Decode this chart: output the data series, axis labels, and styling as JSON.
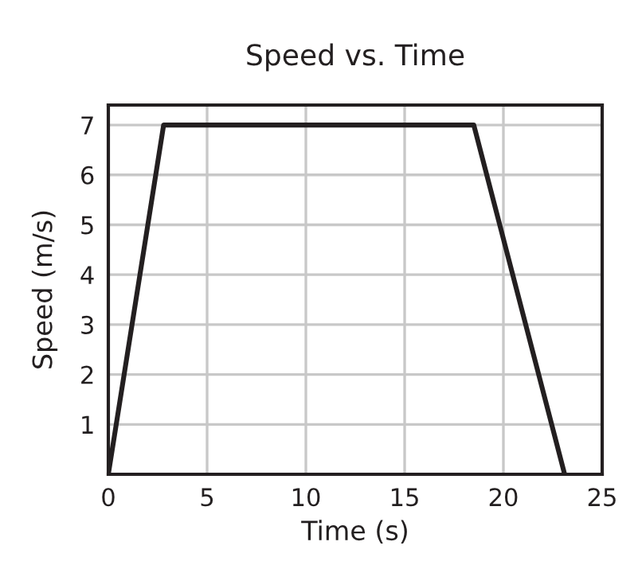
{
  "chart_data": {
    "type": "line",
    "title": "Speed vs. Time",
    "xlabel": "Time (s)",
    "ylabel": "Speed (m/s)",
    "x": [
      0,
      2.8,
      18.5,
      23.1
    ],
    "series": [
      {
        "color": "#231f20",
        "values": [
          0,
          7,
          7,
          0
        ]
      }
    ],
    "xlim": [
      0,
      25
    ],
    "ylim": [
      0,
      7.4
    ],
    "xticks": [
      0,
      5,
      10,
      15,
      20,
      25
    ],
    "yticks": [
      {
        "value": 0,
        "label": null
      },
      1,
      2,
      3,
      4,
      5,
      6,
      7
    ],
    "grid": true,
    "marker": "none",
    "line_style": "solid"
  }
}
